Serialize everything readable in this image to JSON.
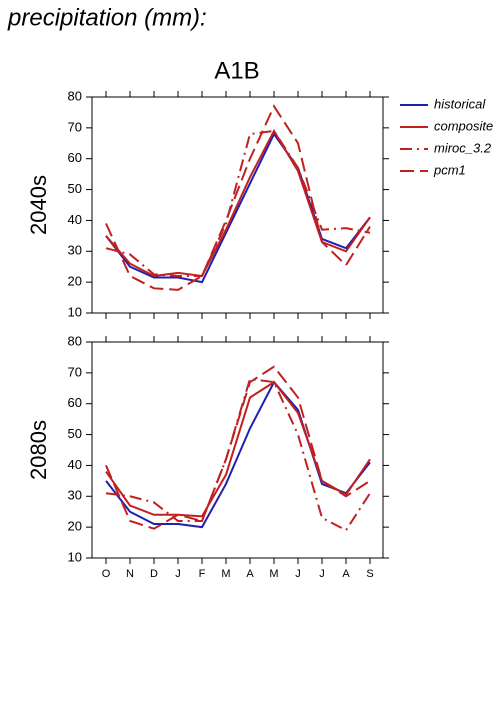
{
  "header": "precipitation (mm):",
  "chart_data": [
    {
      "type": "line",
      "title": "A1B",
      "y_label": "2040s",
      "categories": [
        null,
        null,
        null,
        null,
        null,
        null,
        null,
        null,
        null,
        null,
        null,
        null
      ],
      "ylim": [
        10,
        80
      ],
      "yticks": [
        10,
        20,
        30,
        40,
        50,
        60,
        70,
        80
      ],
      "series": [
        {
          "name": "historical",
          "color": "#2020b0",
          "line_style": "solid",
          "values": [
            35,
            25,
            21.5,
            21.5,
            20,
            36,
            52,
            68,
            57,
            34,
            31,
            41
          ]
        },
        {
          "name": "composite",
          "color": "#c02020",
          "line_style": "solid",
          "values": [
            35,
            26,
            22,
            23,
            22,
            37,
            54,
            69,
            56,
            33,
            30,
            41
          ]
        },
        {
          "name": "miroc_3.2",
          "color": "#c02020",
          "line_style": "dashdot",
          "values": [
            31,
            29,
            22.5,
            22,
            22,
            39,
            68,
            69,
            57,
            37,
            37.5,
            36
          ]
        },
        {
          "name": "pcm1",
          "color": "#c02020",
          "line_style": "dash",
          "values": [
            39,
            22,
            18,
            17.5,
            22,
            40,
            60,
            77,
            65,
            33,
            25.5,
            38
          ]
        }
      ]
    },
    {
      "type": "line",
      "y_label": "2080s",
      "categories": [
        "O",
        "N",
        "D",
        "J",
        "F",
        "M",
        "A",
        "M",
        "J",
        "J",
        "A",
        "S"
      ],
      "ylim": [
        10,
        80
      ],
      "yticks": [
        10,
        20,
        30,
        40,
        50,
        60,
        70,
        80
      ],
      "series": [
        {
          "name": "historical",
          "color": "#2020b0",
          "line_style": "solid",
          "values": [
            35,
            25,
            21,
            21,
            20,
            34,
            52,
            67,
            58,
            34,
            31,
            41
          ]
        },
        {
          "name": "composite",
          "color": "#c02020",
          "line_style": "solid",
          "values": [
            38,
            27,
            24,
            24,
            23.5,
            37,
            62,
            67,
            57,
            35,
            30.5,
            42
          ]
        },
        {
          "name": "miroc_3.2",
          "color": "#c02020",
          "line_style": "dashdot",
          "values": [
            31,
            30,
            28,
            22,
            22,
            42,
            68,
            67,
            50,
            23,
            19,
            31
          ]
        },
        {
          "name": "pcm1",
          "color": "#c02020",
          "line_style": "dash",
          "values": [
            40,
            22,
            19.5,
            24,
            22,
            42,
            67,
            72,
            62,
            35,
            30,
            35
          ]
        }
      ]
    }
  ]
}
